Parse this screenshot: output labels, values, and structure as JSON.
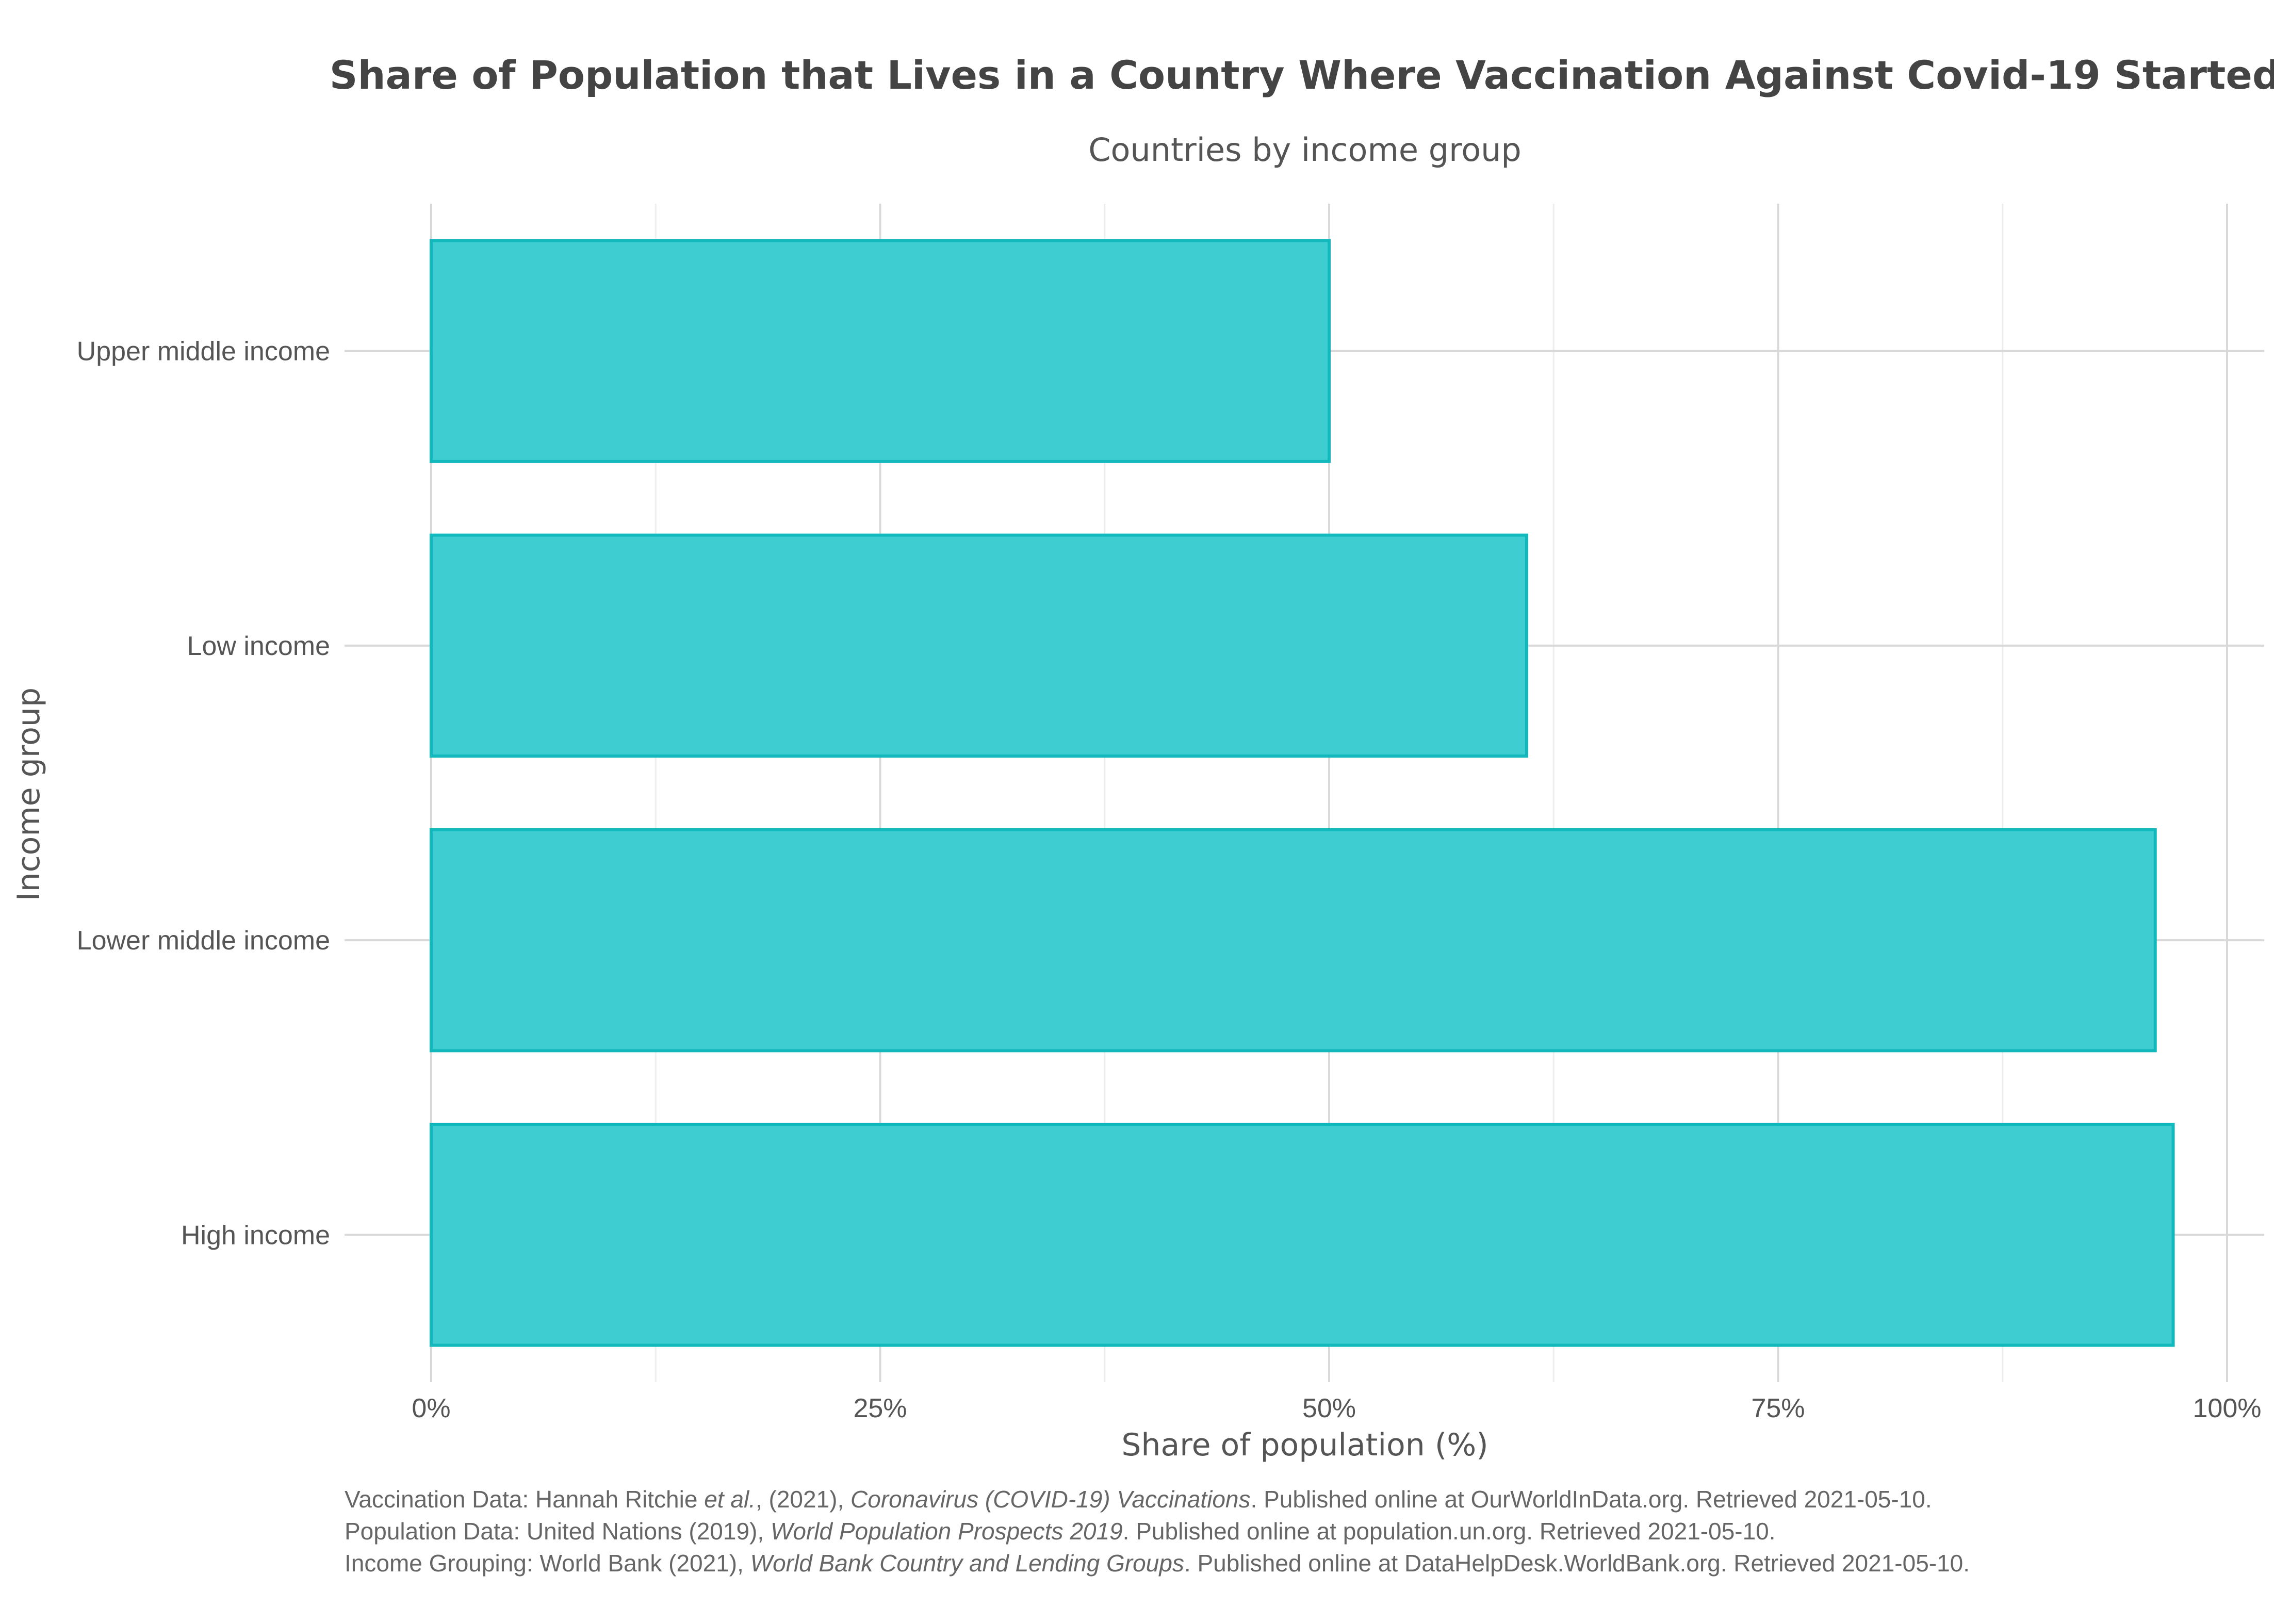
{
  "chart_data": {
    "type": "bar",
    "orientation": "horizontal",
    "title": "Share of Population that Lives in a Country Where Vaccination Against Covid-19 Started",
    "subtitle": "Countries by income group",
    "xlabel": "Share of population (%)",
    "ylabel": "Income group",
    "categories": [
      "Upper middle income",
      "Low income",
      "Lower middle income",
      "High income"
    ],
    "values": [
      50,
      61,
      96,
      97
    ],
    "xlim": [
      0,
      100
    ],
    "xticks": [
      0,
      25,
      50,
      75,
      100
    ],
    "xtick_labels": [
      "0%",
      "25%",
      "50%",
      "75%",
      "100%"
    ],
    "grid": true,
    "legend": "none",
    "colors": {
      "bar_fill": "#3ecdd1",
      "bar_stroke": "#12b8bc"
    }
  },
  "caption": {
    "line1": {
      "pre": "Vaccination Data: Hannah Ritchie ",
      "em1": "et al.",
      "mid": ", (2021), ",
      "em2": "Coronavirus (COVID-19) Vaccinations",
      "post": ". Published online at OurWorldInData.org. Retrieved 2021-05-10."
    },
    "line2": {
      "pre": "Population Data: United Nations (2019), ",
      "em1": "World Population Prospects 2019",
      "post": ". Published online at population.un.org. Retrieved 2021-05-10."
    },
    "line3": {
      "pre": "Income Grouping: World Bank (2021), ",
      "em1": "World Bank Country and Lending Groups",
      "post": ". Published online at DataHelpDesk.WorldBank.org. Retrieved 2021-05-10."
    }
  }
}
